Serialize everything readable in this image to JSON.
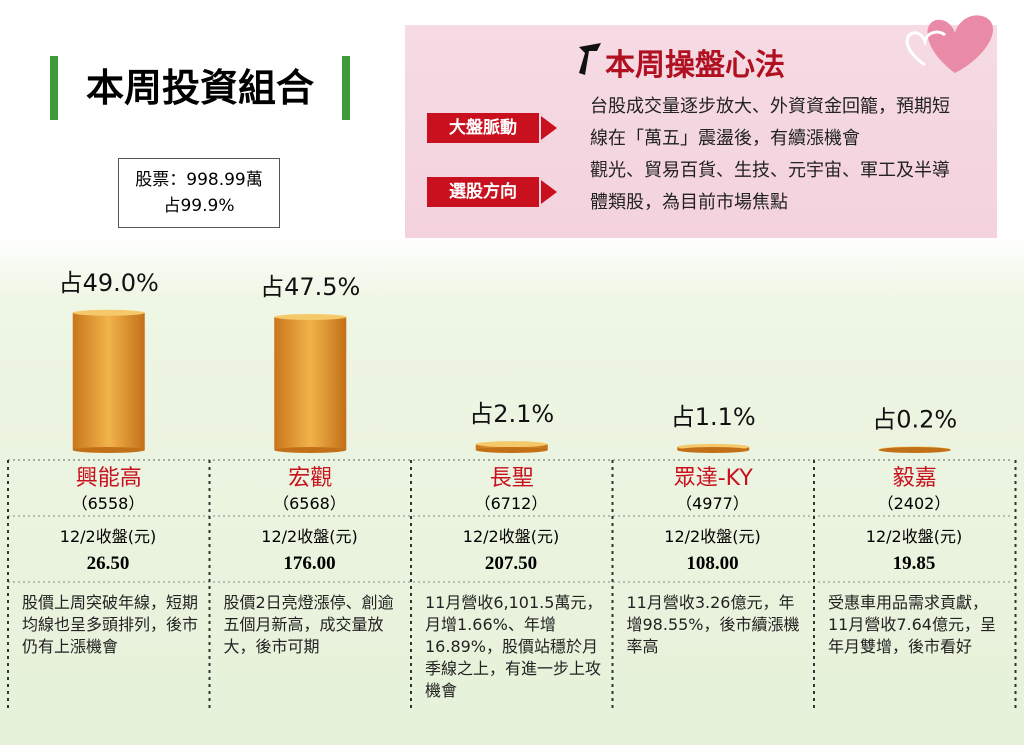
{
  "title": "本周投資組合",
  "holding": {
    "stock": "股票：998.99萬",
    "share": "占99.9%"
  },
  "strategy": {
    "title": "本周操盤心法",
    "items": [
      {
        "label": "大盤脈動",
        "text": "台股成交量逐步放大、外資資金回籠，預期短線在「萬五」震盪後，有續漲機會"
      },
      {
        "label": "選股方向",
        "text": "觀光、貿易百貨、生技、元宇宙、軍工及半導體類股，為目前市場焦點"
      }
    ]
  },
  "chart_data": {
    "type": "bar",
    "categories": [
      "興能高",
      "宏觀",
      "長聖",
      "眾達-KY",
      "毅嘉"
    ],
    "values": [
      49.0,
      47.5,
      2.1,
      1.1,
      0.2
    ],
    "value_labels": [
      "占49.0%",
      "占47.5%",
      "占2.1%",
      "占1.1%",
      "占0.2%"
    ]
  },
  "table": {
    "rows": [
      [
        "（6558）",
        "12/2收盤(元)",
        "26.50",
        "股價上周突破年線，短期均線也呈多頭排列，後市仍有上漲機會"
      ],
      [
        "（6568）",
        "12/2收盤(元)",
        "176.00",
        "股價2日亮燈漲停、創逾五個月新高，成交量放大，後市可期"
      ],
      [
        "（6712）",
        "12/2收盤(元)",
        "207.50",
        "11月營收6,101.5萬元，月增1.66%、年增16.89%，股價站穩於月季線之上，有進一步上攻機會"
      ],
      [
        "（4977）",
        "12/2收盤(元)",
        "108.00",
        "11月營收3.26億元，年增98.55%，後市續漲機率高"
      ],
      [
        "（2402）",
        "12/2收盤(元)",
        "19.85",
        "受惠車用品需求貢獻，11月營收7.64億元，呈年月雙增，後市看好"
      ]
    ]
  }
}
